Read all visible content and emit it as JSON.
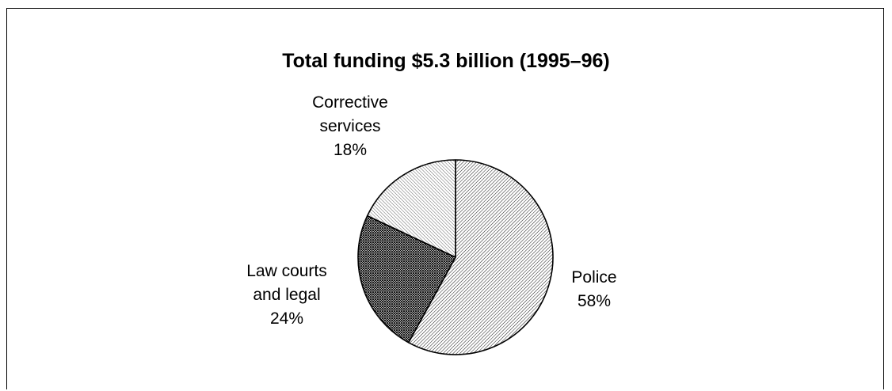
{
  "chart_data": {
    "type": "pie",
    "title": "Total funding $5.3 billion (1995–96)",
    "slices": [
      {
        "lines": [
          "Police",
          "58%"
        ],
        "label": "Police",
        "value": 58,
        "pattern": "diagonal-hatch-dense"
      },
      {
        "lines": [
          "Law courts",
          "and legal",
          "24%"
        ],
        "label": "Law courts and legal",
        "value": 24,
        "pattern": "crosshatch"
      },
      {
        "lines": [
          "Corrective",
          "services",
          "18%"
        ],
        "label": "Corrective services",
        "value": 18,
        "pattern": "diagonal-hatch-light"
      }
    ],
    "start_angle_deg": 0,
    "direction": "clockwise",
    "legend": "none",
    "colors": {
      "outline": "#000000",
      "background": "#ffffff"
    }
  }
}
